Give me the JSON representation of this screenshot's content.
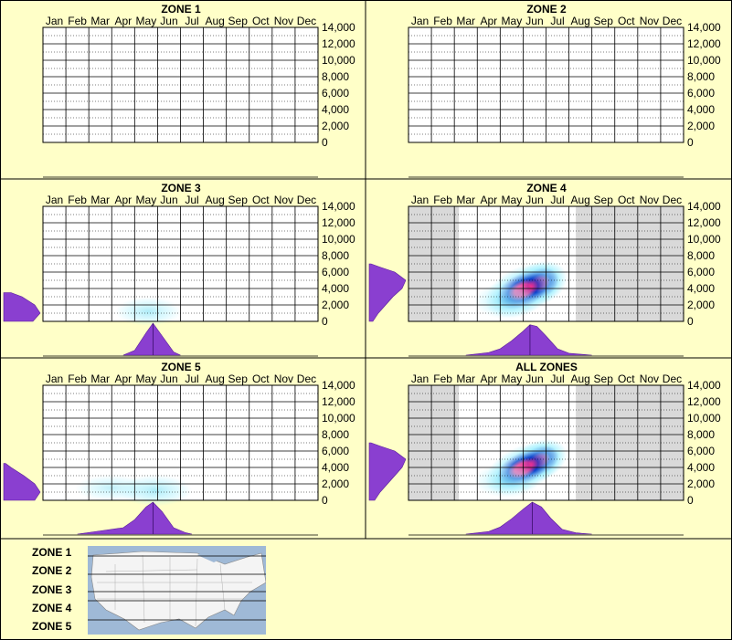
{
  "months": [
    "Jan",
    "Feb",
    "Mar",
    "Apr",
    "May",
    "Jun",
    "Jul",
    "Aug",
    "Sep",
    "Oct",
    "Nov",
    "Dec"
  ],
  "y_ticks": [
    "14,000",
    "12,000",
    "10,000",
    "8,000",
    "6,000",
    "4,000",
    "2,000",
    "0"
  ],
  "colors": {
    "background": "#ffffc8",
    "distribution": "#8a3fd0",
    "grey_band": "#d9d9d9",
    "heat_low": "#a0f0ff",
    "heat_mid": "#0038c8",
    "heat_high": "#ff2a8a"
  },
  "chart_data": [
    {
      "type": "heatmap",
      "title": "ZONE 1",
      "x_categories": [
        "Jan",
        "Feb",
        "Mar",
        "Apr",
        "May",
        "Jun",
        "Jul",
        "Aug",
        "Sep",
        "Oct",
        "Nov",
        "Dec"
      ],
      "ylim": [
        0,
        14000
      ],
      "grid": true,
      "hotspots": [],
      "grey_months": [],
      "has_marginals": false
    },
    {
      "type": "heatmap",
      "title": "ZONE 2",
      "x_categories": [
        "Jan",
        "Feb",
        "Mar",
        "Apr",
        "May",
        "Jun",
        "Jul",
        "Aug",
        "Sep",
        "Oct",
        "Nov",
        "Dec"
      ],
      "ylim": [
        0,
        14000
      ],
      "grid": true,
      "hotspots": [],
      "grey_months": [],
      "has_marginals": false
    },
    {
      "type": "heatmap",
      "title": "ZONE 3",
      "x_categories": [
        "Jan",
        "Feb",
        "Mar",
        "Apr",
        "May",
        "Jun",
        "Jul",
        "Aug",
        "Sep",
        "Oct",
        "Nov",
        "Dec"
      ],
      "ylim": [
        0,
        14000
      ],
      "grid": true,
      "hotspots": [
        {
          "month": 4.6,
          "elev": 1200,
          "sx": 0.9,
          "sy": 1100,
          "intensity": 0.3
        }
      ],
      "grey_months": [],
      "has_marginals": true,
      "month_density": [
        {
          "m": 3.5,
          "d": 0
        },
        {
          "m": 4.0,
          "d": 0.15
        },
        {
          "m": 4.5,
          "d": 0.7
        },
        {
          "m": 4.8,
          "d": 1.0
        },
        {
          "m": 5.2,
          "d": 0.6
        },
        {
          "m": 5.7,
          "d": 0.1
        },
        {
          "m": 6.0,
          "d": 0
        }
      ],
      "elev_density": [
        {
          "e": 0,
          "d": 0.8
        },
        {
          "e": 1000,
          "d": 1.0
        },
        {
          "e": 2000,
          "d": 0.85
        },
        {
          "e": 3000,
          "d": 0.5
        },
        {
          "e": 3500,
          "d": 0.2
        }
      ]
    },
    {
      "type": "heatmap",
      "title": "ZONE 4",
      "x_categories": [
        "Jan",
        "Feb",
        "Mar",
        "Apr",
        "May",
        "Jun",
        "Jul",
        "Aug",
        "Sep",
        "Oct",
        "Nov",
        "Dec"
      ],
      "ylim": [
        0,
        14000
      ],
      "grid": true,
      "hotspots": [
        {
          "month": 5.7,
          "elev": 4600,
          "sx": 0.8,
          "sy": 1600,
          "intensity": 1.0
        },
        {
          "month": 5.0,
          "elev": 3800,
          "sx": 1.1,
          "sy": 1800,
          "intensity": 0.7
        },
        {
          "month": 4.3,
          "elev": 2500,
          "sx": 0.9,
          "sy": 1400,
          "intensity": 0.35
        }
      ],
      "grey_months": [
        [
          0,
          2.2
        ],
        [
          7.3,
          12
        ]
      ],
      "has_marginals": true,
      "month_density": [
        {
          "m": 2.5,
          "d": 0
        },
        {
          "m": 3.5,
          "d": 0.08
        },
        {
          "m": 4.0,
          "d": 0.2
        },
        {
          "m": 4.5,
          "d": 0.45
        },
        {
          "m": 5.0,
          "d": 0.75
        },
        {
          "m": 5.3,
          "d": 0.95
        },
        {
          "m": 5.6,
          "d": 0.9
        },
        {
          "m": 6.0,
          "d": 0.6
        },
        {
          "m": 6.5,
          "d": 0.2
        },
        {
          "m": 7.0,
          "d": 0.06
        },
        {
          "m": 8.0,
          "d": 0
        }
      ],
      "elev_density": [
        {
          "e": 0,
          "d": 0.1
        },
        {
          "e": 1000,
          "d": 0.25
        },
        {
          "e": 2000,
          "d": 0.45
        },
        {
          "e": 3000,
          "d": 0.65
        },
        {
          "e": 4000,
          "d": 0.9
        },
        {
          "e": 5000,
          "d": 1.0
        },
        {
          "e": 6000,
          "d": 0.7
        },
        {
          "e": 6600,
          "d": 0.3
        },
        {
          "e": 7000,
          "d": 0.05
        }
      ]
    },
    {
      "type": "heatmap",
      "title": "ZONE 5",
      "x_categories": [
        "Jan",
        "Feb",
        "Mar",
        "Apr",
        "May",
        "Jun",
        "Jul",
        "Aug",
        "Sep",
        "Oct",
        "Nov",
        "Dec"
      ],
      "ylim": [
        0,
        14000
      ],
      "grid": true,
      "hotspots": [
        {
          "month": 4.9,
          "elev": 1200,
          "sx": 1.0,
          "sy": 1200,
          "intensity": 0.35
        },
        {
          "month": 3.0,
          "elev": 1500,
          "sx": 1.0,
          "sy": 1000,
          "intensity": 0.12
        }
      ],
      "grey_months": [],
      "has_marginals": true,
      "month_density": [
        {
          "m": 1.5,
          "d": 0
        },
        {
          "m": 2.5,
          "d": 0.1
        },
        {
          "m": 3.5,
          "d": 0.2
        },
        {
          "m": 4.0,
          "d": 0.45
        },
        {
          "m": 4.5,
          "d": 0.85
        },
        {
          "m": 4.8,
          "d": 1.0
        },
        {
          "m": 5.2,
          "d": 0.7
        },
        {
          "m": 5.7,
          "d": 0.2
        },
        {
          "m": 6.2,
          "d": 0.05
        },
        {
          "m": 6.5,
          "d": 0
        }
      ],
      "elev_density": [
        {
          "e": 0,
          "d": 0.85
        },
        {
          "e": 1000,
          "d": 1.0
        },
        {
          "e": 2000,
          "d": 0.85
        },
        {
          "e": 3000,
          "d": 0.55
        },
        {
          "e": 4000,
          "d": 0.2
        },
        {
          "e": 4500,
          "d": 0.05
        }
      ]
    },
    {
      "type": "heatmap",
      "title": "ALL ZONES",
      "x_categories": [
        "Jan",
        "Feb",
        "Mar",
        "Apr",
        "May",
        "Jun",
        "Jul",
        "Aug",
        "Sep",
        "Oct",
        "Nov",
        "Dec"
      ],
      "ylim": [
        0,
        14000
      ],
      "grid": true,
      "hotspots": [
        {
          "month": 5.7,
          "elev": 4800,
          "sx": 0.8,
          "sy": 1500,
          "intensity": 1.0
        },
        {
          "month": 5.0,
          "elev": 3900,
          "sx": 1.1,
          "sy": 1700,
          "intensity": 0.7
        },
        {
          "month": 4.3,
          "elev": 2400,
          "sx": 0.9,
          "sy": 1300,
          "intensity": 0.35
        }
      ],
      "grey_months": [
        [
          0,
          2.2
        ],
        [
          7.3,
          12
        ]
      ],
      "has_marginals": true,
      "month_density": [
        {
          "m": 2.5,
          "d": 0
        },
        {
          "m": 3.5,
          "d": 0.08
        },
        {
          "m": 4.0,
          "d": 0.22
        },
        {
          "m": 4.5,
          "d": 0.48
        },
        {
          "m": 5.0,
          "d": 0.78
        },
        {
          "m": 5.4,
          "d": 1.0
        },
        {
          "m": 5.8,
          "d": 0.85
        },
        {
          "m": 6.2,
          "d": 0.5
        },
        {
          "m": 6.7,
          "d": 0.15
        },
        {
          "m": 7.3,
          "d": 0.04
        },
        {
          "m": 8.0,
          "d": 0
        }
      ],
      "elev_density": [
        {
          "e": 0,
          "d": 0.15
        },
        {
          "e": 1000,
          "d": 0.3
        },
        {
          "e": 2000,
          "d": 0.5
        },
        {
          "e": 3000,
          "d": 0.7
        },
        {
          "e": 4000,
          "d": 0.9
        },
        {
          "e": 5000,
          "d": 1.0
        },
        {
          "e": 6000,
          "d": 0.7
        },
        {
          "e": 6600,
          "d": 0.3
        },
        {
          "e": 7000,
          "d": 0.05
        }
      ]
    }
  ],
  "legend": {
    "zones": [
      "ZONE 1",
      "ZONE 2",
      "ZONE 3",
      "ZONE 4",
      "ZONE 5"
    ],
    "map_icon": "us-map-icon"
  }
}
